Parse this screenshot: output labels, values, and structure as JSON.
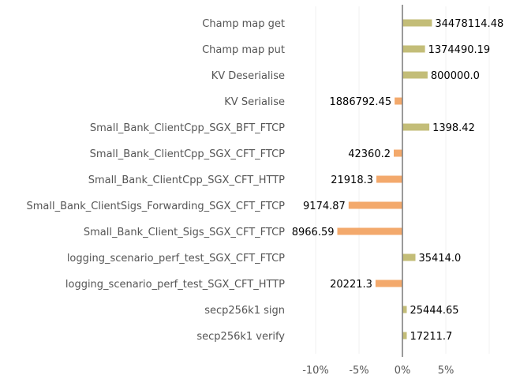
{
  "chart_data": {
    "type": "bar",
    "orientation": "horizontal",
    "categories": [
      "Champ map get",
      "Champ map put",
      "KV Deserialise",
      "KV Serialise",
      "Small_Bank_ClientCpp_SGX_BFT_FTCP",
      "Small_Bank_ClientCpp_SGX_CFT_FTCP",
      "Small_Bank_ClientCpp_SGX_CFT_HTTP",
      "Small_Bank_ClientSigs_Forwarding_SGX_CFT_FTCP",
      "Small_Bank_Client_Sigs_SGX_CFT_FTCP",
      "logging_scenario_perf_test_SGX_CFT_FTCP",
      "logging_scenario_perf_test_SGX_CFT_HTTP",
      "secp256k1 sign",
      "secp256k1 verify"
    ],
    "values_pct": [
      3.4,
      2.6,
      2.9,
      -0.9,
      3.1,
      -1.0,
      -3.0,
      -6.2,
      -7.5,
      1.5,
      -3.1,
      0.5,
      0.5
    ],
    "value_labels": [
      "34478114.48",
      "1374490.19",
      "800000.0",
      "1886792.45",
      "1398.42",
      "42360.2",
      "21918.3",
      "9174.87",
      "8966.59",
      "35414.0",
      "20221.3",
      "25444.65",
      "17211.7"
    ],
    "xlim": [
      -12,
      11
    ],
    "xticks": [
      -10,
      -5,
      0,
      5
    ],
    "xtick_labels": [
      "-10%",
      "-5%",
      "0%",
      "5%"
    ],
    "colors": {
      "positive": "#c3bd78",
      "negative": "#f3a96c",
      "zero_line": "#808080",
      "grid": "#f0f0f0"
    },
    "grid": true
  }
}
